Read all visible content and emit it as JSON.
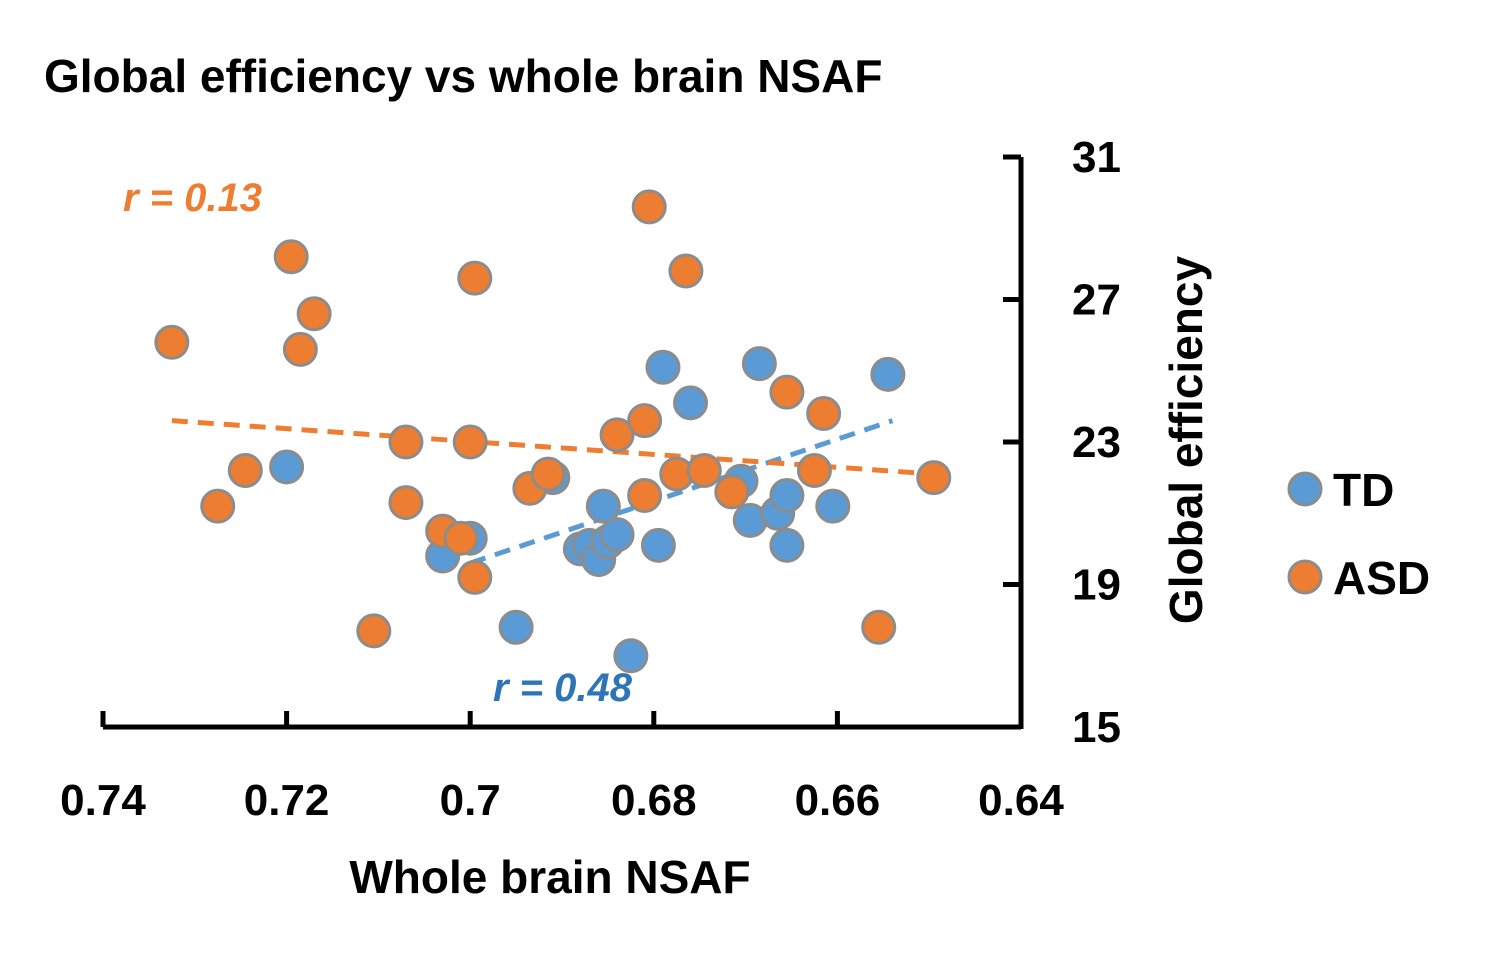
{
  "chart_data": {
    "type": "scatter",
    "title": "Global efficiency vs whole brain NSAF",
    "xlabel": "Whole brain NSAF",
    "ylabel": "Global efficiency",
    "x_reversed": true,
    "xlim": [
      0.74,
      0.64
    ],
    "ylim": [
      15,
      31
    ],
    "xticks": [
      0.74,
      0.72,
      0.7,
      0.68,
      0.66,
      0.64
    ],
    "xtick_labels": [
      "0.74",
      "0.72",
      "0.7",
      "0.68",
      "0.66",
      "0.64"
    ],
    "yticks": [
      15,
      19,
      23,
      27,
      31
    ],
    "ytick_labels": [
      "15",
      "19",
      "23",
      "27",
      "31"
    ],
    "y_axis_position": "right",
    "legend_position": "right",
    "series": [
      {
        "name": "TD",
        "color": "#5b9bd5",
        "r_label": "r = 0.48",
        "r_label_color": "#2e75b6",
        "trendline": [
          [
            0.7,
            19.6
          ],
          [
            0.654,
            23.6
          ]
        ],
        "points": [
          [
            0.703,
            19.8
          ],
          [
            0.7,
            20.3
          ],
          [
            0.695,
            17.8
          ],
          [
            0.691,
            22.0
          ],
          [
            0.688,
            20.0
          ],
          [
            0.687,
            20.1
          ],
          [
            0.686,
            19.7
          ],
          [
            0.6855,
            21.2
          ],
          [
            0.685,
            20.2
          ],
          [
            0.684,
            20.4
          ],
          [
            0.6825,
            17.0
          ],
          [
            0.6795,
            20.1
          ],
          [
            0.679,
            25.1
          ],
          [
            0.676,
            24.1
          ],
          [
            0.6705,
            21.9
          ],
          [
            0.6695,
            20.8
          ],
          [
            0.6685,
            25.2
          ],
          [
            0.6665,
            21.0
          ],
          [
            0.6655,
            20.1
          ],
          [
            0.6655,
            21.5
          ],
          [
            0.6605,
            21.2
          ],
          [
            0.6545,
            24.9
          ],
          [
            0.72,
            22.3
          ]
        ]
      },
      {
        "name": "ASD",
        "color": "#ed7d31",
        "r_label": "r = 0.13",
        "r_label_color": "#ed7d31",
        "trendline": [
          [
            0.7325,
            23.6
          ],
          [
            0.6495,
            22.1
          ]
        ],
        "points": [
          [
            0.7325,
            25.8
          ],
          [
            0.7275,
            21.2
          ],
          [
            0.7245,
            22.2
          ],
          [
            0.7195,
            28.2
          ],
          [
            0.7185,
            25.6
          ],
          [
            0.717,
            26.6
          ],
          [
            0.7105,
            17.7
          ],
          [
            0.707,
            23.0
          ],
          [
            0.707,
            21.3
          ],
          [
            0.703,
            20.5
          ],
          [
            0.701,
            20.3
          ],
          [
            0.7,
            23.0
          ],
          [
            0.6995,
            27.6
          ],
          [
            0.6995,
            19.2
          ],
          [
            0.6935,
            21.7
          ],
          [
            0.6915,
            22.1
          ],
          [
            0.684,
            23.2
          ],
          [
            0.681,
            23.6
          ],
          [
            0.6805,
            29.6
          ],
          [
            0.681,
            21.5
          ],
          [
            0.6775,
            22.1
          ],
          [
            0.6765,
            27.8
          ],
          [
            0.6745,
            22.2
          ],
          [
            0.6715,
            21.6
          ],
          [
            0.6655,
            24.4
          ],
          [
            0.6625,
            22.2
          ],
          [
            0.6615,
            23.8
          ],
          [
            0.6555,
            17.8
          ],
          [
            0.6495,
            22.0
          ]
        ]
      }
    ]
  }
}
